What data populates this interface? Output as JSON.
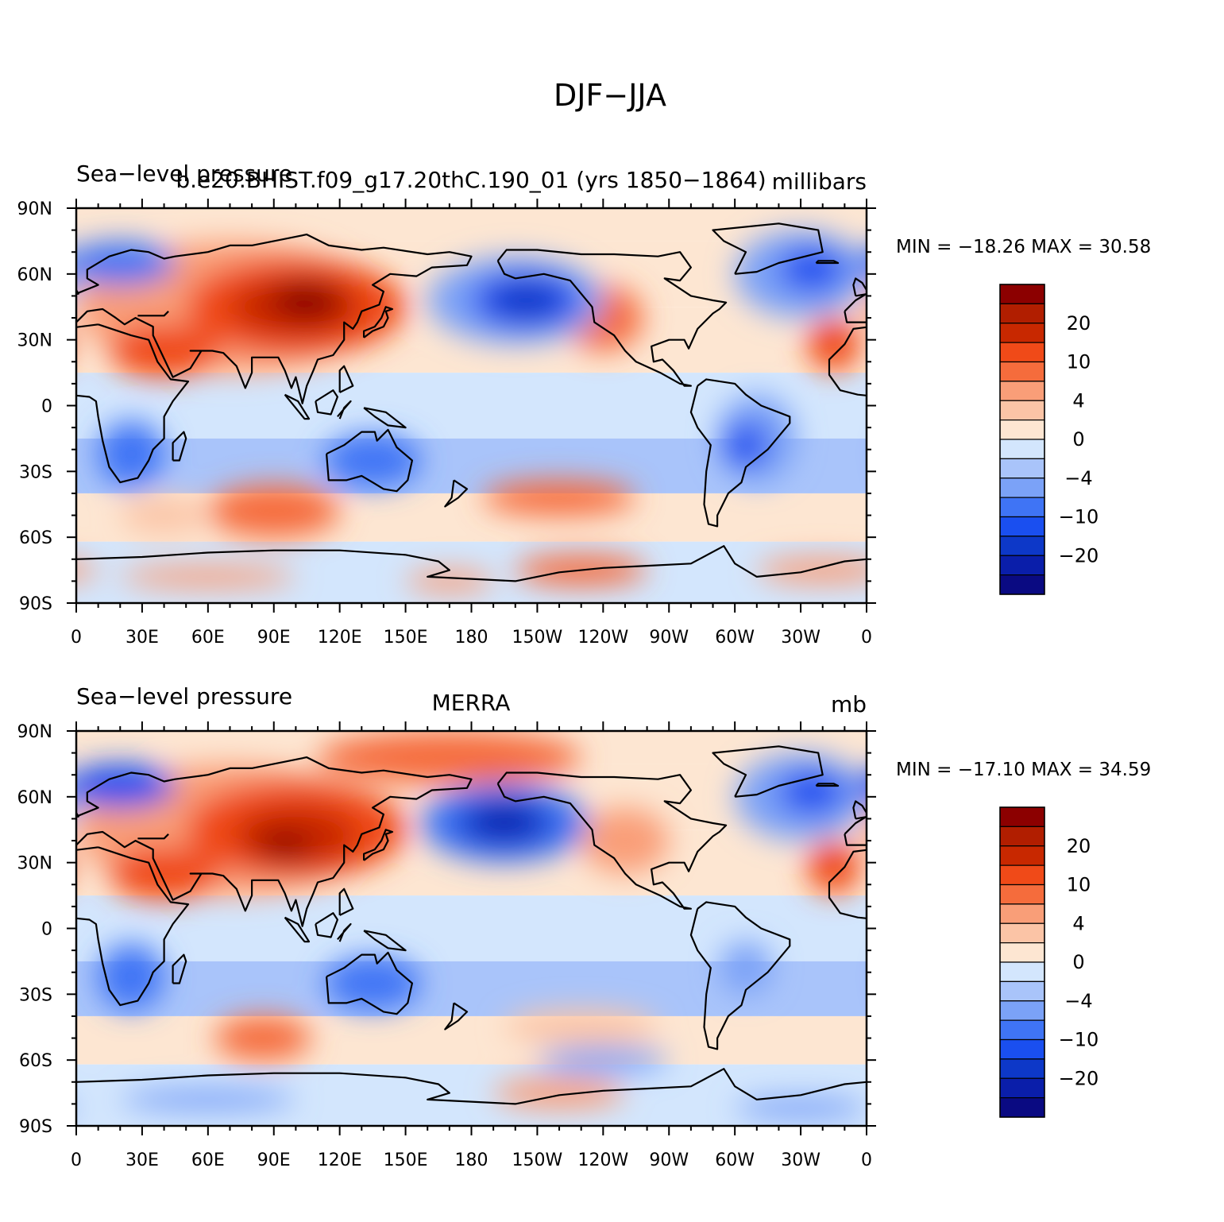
{
  "figure": {
    "title": "DJF−JJA"
  },
  "colors": {
    "levels": [
      "#0a0a82",
      "#0a1eaa",
      "#0d38c8",
      "#1a4ff0",
      "#3f74f5",
      "#7ba2f7",
      "#a9c4fa",
      "#d3e6fd",
      "#fde6d2",
      "#fbc4a6",
      "#f99e78",
      "#f56c3c",
      "#f04a18",
      "#c82800",
      "#b11e00",
      "#8c0000"
    ],
    "coast": "#000000"
  },
  "panels": [
    {
      "left_title": "Sea−level pressure",
      "center_title": "b.e20.BHIST.f09_g17.20thC.190_01 (yrs 1850−1864)",
      "units": "millibars",
      "min_max": "MIN = −18.26  MAX =   30.58",
      "field_extrema": {
        "min": -18.26,
        "max": 30.58
      }
    },
    {
      "left_title": "Sea−level pressure",
      "center_title": "MERRA",
      "units": "mb",
      "min_max": "MIN = −17.10  MAX =   34.59",
      "field_extrema": {
        "min": -17.1,
        "max": 34.59
      }
    }
  ],
  "map_axes": {
    "lat_labels": [
      "90N",
      "60N",
      "30N",
      "0",
      "30S",
      "60S",
      "90S"
    ],
    "lon_labels": [
      "0",
      "30E",
      "60E",
      "90E",
      "120E",
      "150E",
      "180",
      "150W",
      "120W",
      "90W",
      "60W",
      "30W",
      "0"
    ]
  },
  "colorbar": {
    "labels": [
      "20",
      "10",
      "4",
      "0",
      "−4",
      "−10",
      "−20"
    ]
  }
}
